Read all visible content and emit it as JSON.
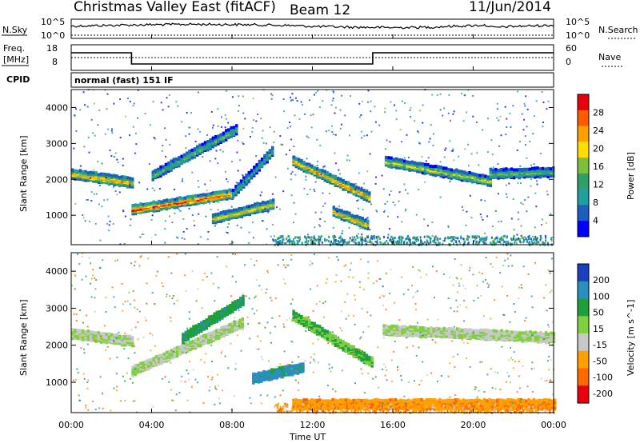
{
  "header": {
    "title": "Christmas Valley East (fitACF)",
    "beam": "Beam 12",
    "date": "11/Jun/2014"
  },
  "top_panels": {
    "nsky_label": "N.Sky",
    "nsky_ticks": [
      "10^5",
      "10^0"
    ],
    "nsearch_label": "N.Search",
    "nsearch_ticks": [
      "10^5",
      "10^0"
    ],
    "freq_label_1": "Freq.",
    "freq_label_2": "[MHz]",
    "freq_ticks": [
      "18",
      "8"
    ],
    "nave_label": "Nave",
    "nave_ticks": [
      "60",
      "0"
    ],
    "cpid_label": "CPID",
    "cpid_value": "normal (fast) 151 IF"
  },
  "chart_data": [
    {
      "type": "line",
      "title": "N.Sky / N.Search",
      "x": [
        "00:00",
        "02:00",
        "04:00",
        "06:00",
        "08:00",
        "10:00",
        "12:00",
        "14:00",
        "16:00",
        "18:00",
        "20:00",
        "20:30",
        "21:00",
        "22:00",
        "24:00"
      ],
      "series": [
        {
          "name": "N.Sky",
          "values": [
            1800,
            3000,
            4500,
            6000,
            5000,
            3500,
            1500,
            900,
            700,
            900,
            2500,
            3500,
            600,
            1500,
            3000
          ]
        }
      ],
      "ylim_log10": [
        0,
        5
      ]
    },
    {
      "type": "line",
      "title": "Freq. / Nave",
      "x": [
        "00:00",
        "03:00",
        "03:00",
        "15:00",
        "15:00",
        "24:00"
      ],
      "series": [
        {
          "name": "Freq. [MHz]",
          "values": [
            15.5,
            15.5,
            10.5,
            10.5,
            15.5,
            15.5
          ]
        },
        {
          "name": "Nave",
          "values": [
            25,
            25,
            25,
            25,
            25,
            25
          ]
        }
      ],
      "ylim": [
        8,
        18
      ]
    },
    {
      "type": "heatmap",
      "quantity": "Power",
      "unit": "dB",
      "ylabel": "Slant Range [km]",
      "yticks": [
        "1000",
        "2000",
        "3000",
        "4000"
      ],
      "ylim": [
        180,
        4500
      ],
      "xlim_hours": [
        0,
        24
      ],
      "colorbar_label": "Power [dB]",
      "colorbar_ticks": [
        "28",
        "24",
        "20",
        "16",
        "12",
        "8",
        "4"
      ],
      "colorbar_colors": [
        "#e8000b",
        "#ff5a00",
        "#ffa000",
        "#ffdd00",
        "#7fbf3f",
        "#2f9f6a",
        "#1fa0a0",
        "#1a5fbf",
        "#0000ff"
      ],
      "bands": [
        {
          "t0": 0.0,
          "t1": 3.0,
          "r0": 2150,
          "r1": 1900,
          "peak": 22
        },
        {
          "t0": 3.0,
          "t1": 8.0,
          "r0": 1150,
          "r1": 1600,
          "peak": 27
        },
        {
          "t0": 4.0,
          "t1": 8.2,
          "r0": 2100,
          "r1": 3400,
          "peak": 14
        },
        {
          "t0": 8.0,
          "t1": 10.0,
          "r0": 1600,
          "r1": 2800,
          "peak": 12
        },
        {
          "t0": 7.0,
          "t1": 10.0,
          "r0": 900,
          "r1": 1300,
          "peak": 20
        },
        {
          "t0": 11.0,
          "t1": 14.8,
          "r0": 2500,
          "r1": 1500,
          "peak": 22
        },
        {
          "t0": 13.0,
          "t1": 14.8,
          "r0": 1100,
          "r1": 700,
          "peak": 22
        },
        {
          "t0": 15.6,
          "t1": 20.8,
          "r0": 2500,
          "r1": 1950,
          "peak": 18
        },
        {
          "t0": 20.8,
          "t1": 24.0,
          "r0": 2150,
          "r1": 2200,
          "peak": 14
        }
      ]
    },
    {
      "type": "heatmap",
      "quantity": "Velocity",
      "unit": "m s^-1",
      "ylabel": "Slant Range [km]",
      "yticks": [
        "1000",
        "2000",
        "3000",
        "4000"
      ],
      "ylim": [
        180,
        4500
      ],
      "xlim_hours": [
        0,
        24
      ],
      "colorbar_label": "Velocity [m s^-1]",
      "colorbar_ticks": [
        "200",
        "100",
        "50",
        "15",
        "-15",
        "-50",
        "-100",
        "-200"
      ],
      "colorbar_colors": [
        "#1a3fbf",
        "#2a8fbf",
        "#1f9f3a",
        "#7fcf3f",
        "#c8c8c8",
        "#ffa000",
        "#ff6a00",
        "#e8000b"
      ],
      "bands": [
        {
          "t0": 0.0,
          "t1": 3.0,
          "r0": 2300,
          "r1": 2100,
          "value": 0
        },
        {
          "t0": 3.0,
          "t1": 8.5,
          "r0": 1300,
          "r1": 2600,
          "value": 0
        },
        {
          "t0": 5.5,
          "t1": 8.5,
          "r0": 2200,
          "r1": 3200,
          "value": 60
        },
        {
          "t0": 9.0,
          "t1": 11.5,
          "r0": 1100,
          "r1": 1400,
          "value": 90
        },
        {
          "t0": 11.0,
          "t1": 15.0,
          "r0": 2800,
          "r1": 1500,
          "value": 30
        },
        {
          "t0": 15.5,
          "t1": 24.0,
          "r0": 2400,
          "r1": 2200,
          "value": 0
        },
        {
          "t0": 11.0,
          "t1": 24.0,
          "r0": 400,
          "r1": 400,
          "value": -60
        }
      ]
    }
  ],
  "xaxis": {
    "ticks": [
      "00:00",
      "04:00",
      "08:00",
      "12:00",
      "16:00",
      "20:00",
      "00:00"
    ],
    "label": "Time UT"
  }
}
